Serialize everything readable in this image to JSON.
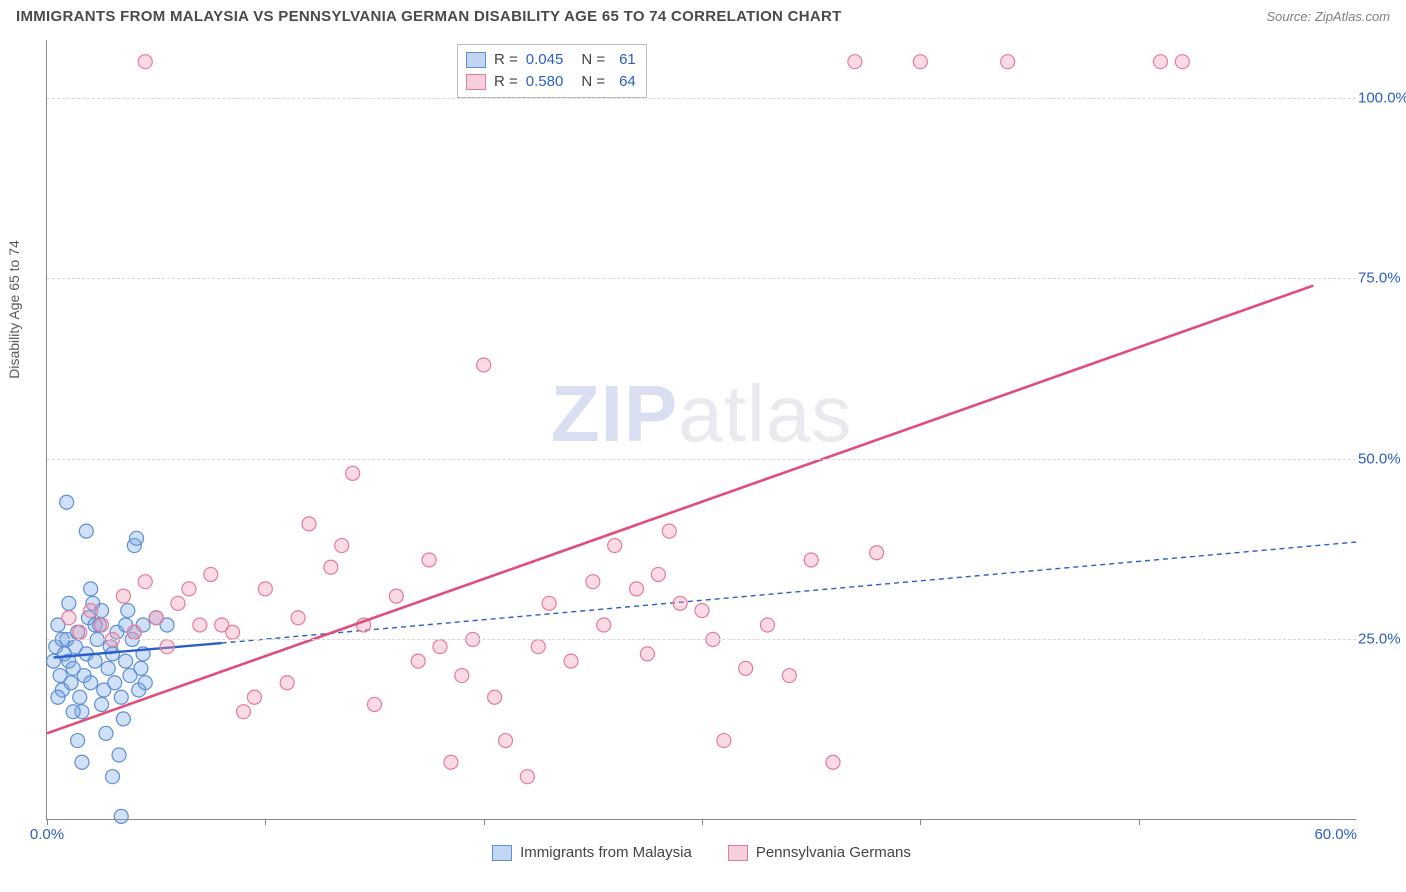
{
  "header": {
    "title": "IMMIGRANTS FROM MALAYSIA VS PENNSYLVANIA GERMAN DISABILITY AGE 65 TO 74 CORRELATION CHART",
    "source": "Source: ZipAtlas.com"
  },
  "watermark": {
    "bold": "ZIP",
    "rest": "atlas"
  },
  "chart": {
    "type": "scatter",
    "y_axis_title": "Disability Age 65 to 74",
    "xlim": [
      0,
      60
    ],
    "ylim": [
      0,
      108
    ],
    "x_ticks": [
      0,
      10,
      20,
      30,
      40,
      50
    ],
    "x_tick_labels": {
      "0": "0.0%",
      "60": "60.0%"
    },
    "y_ticks": [
      25,
      50,
      75,
      100
    ],
    "y_tick_labels": [
      "25.0%",
      "50.0%",
      "75.0%",
      "100.0%"
    ],
    "grid_color": "#d8d8d8",
    "axis_color": "#888888",
    "background_color": "#ffffff",
    "tick_label_color": "#2b5fc1",
    "marker_radius": 7,
    "marker_stroke_width": 1.2,
    "series": [
      {
        "name": "Immigrants from Malaysia",
        "fill": "rgba(120,165,230,0.35)",
        "stroke": "#5e8fd6",
        "line_color": "#2a5fc9",
        "line_dash": "none",
        "ext_dash": "5,4",
        "line_width": 2.4,
        "R": "0.045",
        "N": "61",
        "points": [
          [
            0.3,
            22
          ],
          [
            0.4,
            24
          ],
          [
            0.5,
            27
          ],
          [
            0.6,
            20
          ],
          [
            0.7,
            18
          ],
          [
            0.8,
            23
          ],
          [
            0.9,
            25
          ],
          [
            1.0,
            22
          ],
          [
            1.1,
            19
          ],
          [
            1.2,
            21
          ],
          [
            1.3,
            24
          ],
          [
            1.4,
            26
          ],
          [
            1.5,
            17
          ],
          [
            1.6,
            15
          ],
          [
            1.7,
            20
          ],
          [
            1.8,
            23
          ],
          [
            1.9,
            28
          ],
          [
            2.0,
            19
          ],
          [
            2.1,
            30
          ],
          [
            2.2,
            22
          ],
          [
            2.3,
            25
          ],
          [
            2.4,
            27
          ],
          [
            2.5,
            16
          ],
          [
            2.6,
            18
          ],
          [
            2.7,
            12
          ],
          [
            2.8,
            21
          ],
          [
            2.9,
            24
          ],
          [
            3.0,
            23
          ],
          [
            3.1,
            19
          ],
          [
            3.2,
            26
          ],
          [
            3.3,
            9
          ],
          [
            3.4,
            17
          ],
          [
            3.5,
            14
          ],
          [
            3.6,
            22
          ],
          [
            3.7,
            29
          ],
          [
            3.8,
            20
          ],
          [
            3.9,
            25
          ],
          [
            4.0,
            38
          ],
          [
            4.1,
            39
          ],
          [
            4.2,
            18
          ],
          [
            4.3,
            21
          ],
          [
            4.4,
            23
          ],
          [
            4.5,
            19
          ],
          [
            0.9,
            44
          ],
          [
            1.0,
            30
          ],
          [
            1.2,
            15
          ],
          [
            1.4,
            11
          ],
          [
            1.6,
            8
          ],
          [
            2.0,
            32
          ],
          [
            2.2,
            27
          ],
          [
            2.5,
            29
          ],
          [
            0.5,
            17
          ],
          [
            0.7,
            25
          ],
          [
            3.0,
            6
          ],
          [
            3.4,
            0.5
          ],
          [
            3.6,
            27
          ],
          [
            4.0,
            26
          ],
          [
            4.4,
            27
          ],
          [
            5.0,
            28
          ],
          [
            5.5,
            27
          ],
          [
            1.8,
            40
          ]
        ],
        "reg_line": {
          "x1": 0.3,
          "y1": 22.5,
          "x2": 8,
          "y2": 24.5,
          "ext_x2": 60,
          "ext_y2": 38.5
        }
      },
      {
        "name": "Pennsylvania Germans",
        "fill": "rgba(240,150,175,0.35)",
        "stroke": "#e47c9b",
        "line_color": "#e14d7a",
        "line_dash": "none",
        "line_width": 2.6,
        "R": "0.580",
        "N": "64",
        "points": [
          [
            1,
            28
          ],
          [
            1.5,
            26
          ],
          [
            2,
            29
          ],
          [
            2.5,
            27
          ],
          [
            3,
            25
          ],
          [
            3.5,
            31
          ],
          [
            4,
            26
          ],
          [
            4.5,
            33
          ],
          [
            5,
            28
          ],
          [
            5.5,
            24
          ],
          [
            6,
            30
          ],
          [
            6.5,
            32
          ],
          [
            7,
            27
          ],
          [
            7.5,
            34
          ],
          [
            8,
            27
          ],
          [
            8.5,
            26
          ],
          [
            9,
            15
          ],
          [
            9.5,
            17
          ],
          [
            10,
            32
          ],
          [
            11,
            19
          ],
          [
            11.5,
            28
          ],
          [
            12,
            41
          ],
          [
            13,
            35
          ],
          [
            13.5,
            38
          ],
          [
            14,
            48
          ],
          [
            14.5,
            27
          ],
          [
            15,
            16
          ],
          [
            16,
            31
          ],
          [
            17,
            22
          ],
          [
            17.5,
            36
          ],
          [
            18,
            24
          ],
          [
            18.5,
            8
          ],
          [
            19,
            20
          ],
          [
            19.5,
            25
          ],
          [
            20,
            63
          ],
          [
            20.5,
            17
          ],
          [
            21,
            11
          ],
          [
            22,
            6
          ],
          [
            22.5,
            24
          ],
          [
            23,
            30
          ],
          [
            24,
            22
          ],
          [
            25,
            33
          ],
          [
            25.5,
            27
          ],
          [
            26,
            38
          ],
          [
            27,
            32
          ],
          [
            28,
            34
          ],
          [
            29,
            30
          ],
          [
            30,
            29
          ],
          [
            30.5,
            25
          ],
          [
            31,
            11
          ],
          [
            32,
            21
          ],
          [
            33,
            27
          ],
          [
            34,
            20
          ],
          [
            35,
            36
          ],
          [
            37,
            105
          ],
          [
            40,
            105
          ],
          [
            44,
            105
          ],
          [
            51,
            105
          ],
          [
            52,
            105
          ],
          [
            36,
            8
          ],
          [
            4.5,
            105
          ],
          [
            38,
            37
          ],
          [
            27.5,
            23
          ],
          [
            28.5,
            40
          ]
        ],
        "reg_line": {
          "x1": 0,
          "y1": 12,
          "x2": 58,
          "y2": 74
        }
      }
    ]
  },
  "legend": {
    "rows": [
      {
        "fill": "rgba(120,165,230,0.45)",
        "stroke": "#5e8fd6",
        "r_label": "R =",
        "r_value": "0.045",
        "n_label": "N =",
        "n_value": "61"
      },
      {
        "fill": "rgba(240,150,175,0.45)",
        "stroke": "#e47c9b",
        "r_label": "R =",
        "r_value": "0.580",
        "n_label": "N =",
        "n_value": "64"
      }
    ]
  },
  "bottom_legend": {
    "items": [
      {
        "fill": "rgba(120,165,230,0.45)",
        "stroke": "#5e8fd6",
        "label": "Immigrants from Malaysia"
      },
      {
        "fill": "rgba(240,150,175,0.45)",
        "stroke": "#e47c9b",
        "label": "Pennsylvania Germans"
      }
    ]
  }
}
